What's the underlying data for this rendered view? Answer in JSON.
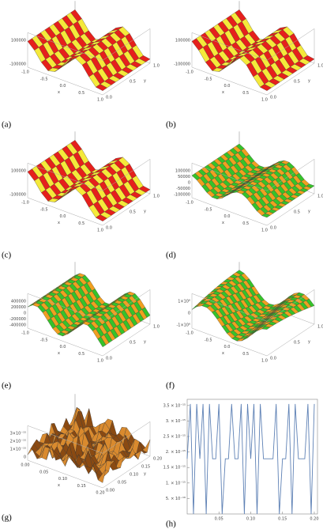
{
  "panels": [
    {
      "label": "(a)",
      "z_ticks": [
        "100000",
        "-100000"
      ],
      "x_ticks": [
        "-1.0",
        "-0.5",
        "0.0",
        "0.5",
        "1.0"
      ],
      "y_ticks": [
        "0.0",
        "0.5",
        "1.0"
      ],
      "x_label": "x",
      "y_label": "y"
    },
    {
      "label": "(b)",
      "z_ticks": [
        "100000",
        "-100000"
      ],
      "x_ticks": [
        "-1.0",
        "-0.5",
        "0.0",
        "0.5",
        "1.0"
      ],
      "y_ticks": [
        "0.0",
        "0.5",
        "1.0"
      ],
      "x_label": "x",
      "y_label": "y"
    },
    {
      "label": "(c)",
      "z_ticks": [
        "100000",
        "-100000"
      ],
      "x_ticks": [
        "-1.0",
        "-0.5",
        "0.0",
        "0.5",
        "1.0"
      ],
      "y_ticks": [
        "0.0",
        "0.5",
        "1.0"
      ],
      "x_label": "x",
      "y_label": "y"
    },
    {
      "label": "(d)",
      "z_ticks": [
        "100000",
        "50000",
        "0",
        "-50000",
        "-100000"
      ],
      "x_ticks": [
        "-1.0",
        "-0.5",
        "0.0",
        "0.5",
        "1.0"
      ],
      "y_ticks": [
        "0.0",
        "0.5",
        "1.0"
      ],
      "x_label": "x",
      "y_label": "y"
    },
    {
      "label": "(e)",
      "z_ticks": [
        "400000",
        "200000",
        "0",
        "-200000",
        "-400000"
      ],
      "x_ticks": [
        "-1.0",
        "-0.5",
        "0.0",
        "0.5",
        "1.0"
      ],
      "y_ticks": [
        "0.0",
        "0.5",
        "1.0"
      ],
      "x_label": "x",
      "y_label": "y"
    },
    {
      "label": "(f)",
      "z_ticks": [
        "1×10⁶",
        "0",
        "-1×10⁶"
      ],
      "x_ticks": [
        "-1.0",
        "-0.5",
        "0.0",
        "0.5",
        "1.0"
      ],
      "y_ticks": [
        "0.0",
        "0.5",
        "1.0"
      ],
      "x_label": "x",
      "y_label": "y"
    },
    {
      "label": "(g)",
      "z_ticks": [
        "3×10⁻¹⁵",
        "2×10⁻¹⁵",
        "1×10⁻¹⁵",
        "0"
      ],
      "x_ticks": [
        "0.00",
        "0.05",
        "0.10",
        "0.15",
        "0.20"
      ],
      "y_ticks": [
        "0.00",
        "0.05",
        "0.10",
        "0.15",
        "0.20"
      ],
      "x_label": "x",
      "y_label": "y"
    }
  ],
  "chart_data": {
    "type": "line",
    "label": "(h)",
    "color": "#5e81b5",
    "x": [
      0.0,
      0.005,
      0.01,
      0.015,
      0.02,
      0.025,
      0.03,
      0.035,
      0.04,
      0.045,
      0.05,
      0.055,
      0.06,
      0.065,
      0.07,
      0.075,
      0.08,
      0.085,
      0.09,
      0.095,
      0.1,
      0.105,
      0.11,
      0.115,
      0.12,
      0.125,
      0.13,
      0.135,
      0.14,
      0.145,
      0.15,
      0.155,
      0.16,
      0.165,
      0.17,
      0.175,
      0.18,
      0.185,
      0.19,
      0.195,
      0.2
    ],
    "values": [
      1.78e-15,
      3.55e-15,
      0,
      3.55e-15,
      1.78e-15,
      3.55e-15,
      0,
      3.55e-15,
      1.78e-15,
      1.78e-15,
      3.55e-15,
      0,
      1.78e-15,
      1.78e-15,
      3.55e-15,
      1.78e-15,
      1.78e-15,
      3.55e-15,
      0,
      3.55e-15,
      1.78e-15,
      3.55e-15,
      0,
      3.55e-15,
      1.78e-15,
      1.78e-15,
      1.78e-15,
      1.78e-15,
      3.55e-15,
      0,
      1.78e-15,
      1.78e-15,
      3.55e-15,
      0,
      3.55e-15,
      1.78e-15,
      1.78e-15,
      1.78e-15,
      3.55e-15,
      0,
      3.55e-15
    ],
    "xlim": [
      0,
      0.205
    ],
    "ylim": [
      0,
      3.7e-15
    ],
    "xticks": [
      0.05,
      {
        "value": 0.1,
        "label": "0.10"
      },
      0.15,
      {
        "value": 0.2,
        "label": "0.20"
      }
    ],
    "yticks": [
      {
        "value": 5e-16,
        "label": "5. × 10⁻¹⁶"
      },
      {
        "value": 1e-15,
        "label": "1. × 10⁻¹⁵"
      },
      {
        "value": 1.5e-15,
        "label": "1.5 × 10⁻¹⁵"
      },
      {
        "value": 2e-15,
        "label": "2. × 10⁻¹⁵"
      },
      {
        "value": 2.5e-15,
        "label": "2.5 × 10⁻¹⁵"
      },
      {
        "value": 3e-15,
        "label": "3. × 10⁻¹⁵"
      },
      {
        "value": 3.5e-15,
        "label": "3.5 × 10⁻¹⁵"
      }
    ]
  }
}
